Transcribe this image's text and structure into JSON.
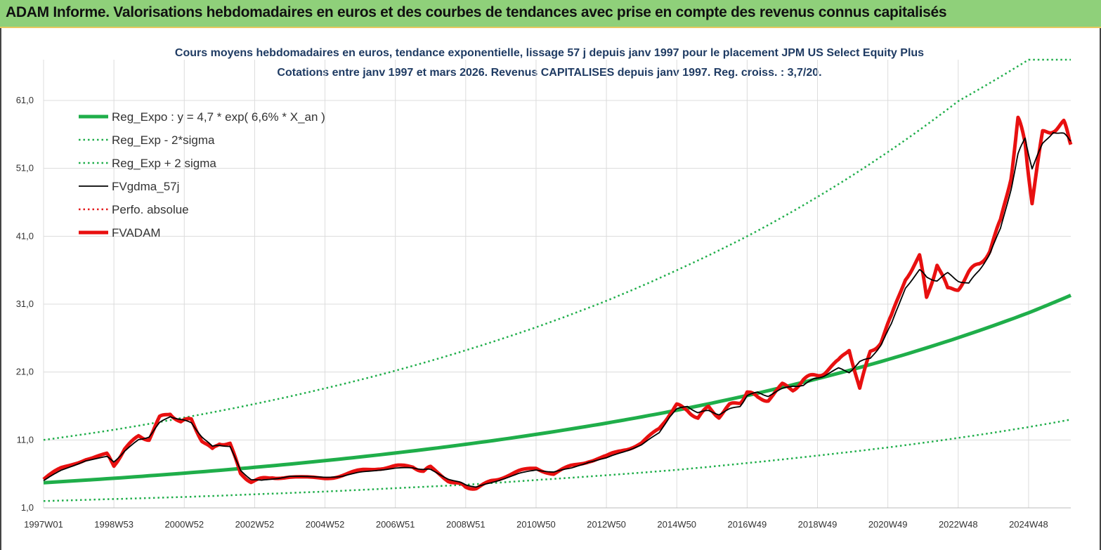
{
  "banner": {
    "title": "ADAM Informe. Valorisations hebdomadaires en euros et des courbes de tendances avec prise en compte des revenus connus capitalisés"
  },
  "chart_data": {
    "type": "line",
    "title_line1": "Cours moyens hebdomadaires en euros, tendance exponentielle, lissage 57 j depuis janv 1997 pour le placement JPM US Select  Equity Plus",
    "title_line2": "Cotations entre janv 1997 et mars 2026. Revenus  CAPITALISES  depuis janv 1997. Reg. croiss. : 3,7/20.",
    "x_range": [
      1997.0,
      2026.2
    ],
    "ylim": [
      1,
      67
    ],
    "y_ticks": [
      1,
      11,
      21,
      31,
      41,
      51,
      61
    ],
    "y_tick_labels": [
      "1,0",
      "11,0",
      "21,0",
      "31,0",
      "41,0",
      "51,0",
      "61,0"
    ],
    "x_ticks": [
      {
        "x": 1997.0,
        "label": "1997W01"
      },
      {
        "x": 1999.0,
        "label": "1998W53"
      },
      {
        "x": 2001.0,
        "label": "2000W52"
      },
      {
        "x": 2003.0,
        "label": "2002W52"
      },
      {
        "x": 2005.0,
        "label": "2004W52"
      },
      {
        "x": 2007.0,
        "label": "2006W51"
      },
      {
        "x": 2009.0,
        "label": "2008W51"
      },
      {
        "x": 2011.0,
        "label": "2010W50"
      },
      {
        "x": 2013.0,
        "label": "2012W50"
      },
      {
        "x": 2015.0,
        "label": "2014W50"
      },
      {
        "x": 2017.0,
        "label": "2016W49"
      },
      {
        "x": 2019.0,
        "label": "2018W49"
      },
      {
        "x": 2021.0,
        "label": "2020W49"
      },
      {
        "x": 2023.0,
        "label": "2022W48"
      },
      {
        "x": 2025.0,
        "label": "2024W48"
      }
    ],
    "grid": true,
    "legend_position": "top-left",
    "series": [
      {
        "name": "Reg_Expo : y = 4,7 * exp( 6,6% *  X_an )",
        "color": "#1fae4a",
        "style": "solid-thick",
        "x": [
          1997,
          1999,
          2001,
          2003,
          2005,
          2007,
          2009,
          2011,
          2013,
          2015,
          2017,
          2019,
          2021,
          2023,
          2025,
          2026.2
        ],
        "y": [
          4.7,
          5.36,
          6.11,
          6.97,
          7.96,
          9.08,
          10.36,
          11.82,
          13.48,
          15.38,
          17.55,
          20.02,
          22.84,
          26.06,
          29.73,
          32.3
        ]
      },
      {
        "name": "Reg_Exp - 2*sigma",
        "color": "#1fae4a",
        "style": "dotted",
        "x": [
          1997,
          1999,
          2001,
          2003,
          2005,
          2007,
          2009,
          2011,
          2013,
          2015,
          2017,
          2019,
          2021,
          2023,
          2025,
          2026.2
        ],
        "y": [
          2.0,
          2.3,
          2.6,
          3.0,
          3.4,
          3.9,
          4.4,
          5.1,
          5.8,
          6.6,
          7.6,
          8.7,
          9.9,
          11.3,
          12.9,
          14.0
        ]
      },
      {
        "name": "Reg_Exp + 2 sigma",
        "color": "#1fae4a",
        "style": "dotted",
        "x": [
          1997,
          1999,
          2001,
          2003,
          2005,
          2007,
          2009,
          2011,
          2013,
          2015,
          2017,
          2019,
          2021,
          2023,
          2025,
          2026.2
        ],
        "y": [
          11.0,
          12.5,
          14.3,
          16.3,
          18.6,
          21.2,
          24.2,
          27.6,
          31.5,
          36.0,
          41.0,
          46.8,
          53.4,
          60.9,
          67.0,
          67.0
        ]
      },
      {
        "name": "FVgdma_57j",
        "color": "#000000",
        "style": "solid",
        "x": [
          1997.0,
          1997.5,
          1998.2,
          1998.8,
          1999.0,
          1999.3,
          1999.7,
          2000.0,
          2000.3,
          2000.6,
          2000.9,
          2001.2,
          2001.5,
          2001.8,
          2002.0,
          2002.3,
          2002.6,
          2002.9,
          2003.2,
          2003.5,
          2004.0,
          2005.0,
          2005.5,
          2006.0,
          2006.5,
          2007.0,
          2007.5,
          2007.8,
          2008.0,
          2008.5,
          2008.8,
          2009.0,
          2009.3,
          2009.7,
          2010.0,
          2010.5,
          2011.0,
          2011.5,
          2012.0,
          2012.5,
          2013.0,
          2013.5,
          2014.0,
          2014.5,
          2014.8,
          2015.0,
          2015.3,
          2015.6,
          2015.9,
          2016.2,
          2016.5,
          2016.8,
          2017.0,
          2017.3,
          2017.6,
          2018.0,
          2018.3,
          2018.6,
          2018.9,
          2019.2,
          2019.6,
          2019.9,
          2020.2,
          2020.5,
          2020.8,
          2021.1,
          2021.5,
          2021.9,
          2022.1,
          2022.4,
          2022.7,
          2023.0,
          2023.3,
          2023.6,
          2023.9,
          2024.2,
          2024.5,
          2024.7,
          2024.9,
          2025.1,
          2025.4,
          2025.7,
          2026.0,
          2026.2
        ],
        "y": [
          5.0,
          6.5,
          8.0,
          8.5,
          7.8,
          9.3,
          11.0,
          11.5,
          13.5,
          14.5,
          14.0,
          13.5,
          11.5,
          10.0,
          10.3,
          10.0,
          6.5,
          5.2,
          5.0,
          5.3,
          5.6,
          5.5,
          5.7,
          6.2,
          6.6,
          6.8,
          6.9,
          6.7,
          6.6,
          5.3,
          4.8,
          4.4,
          4.1,
          4.6,
          5.2,
          6.0,
          6.6,
          6.3,
          6.8,
          7.8,
          8.3,
          9.3,
          10.3,
          12.0,
          14.5,
          15.5,
          16.0,
          15.0,
          15.3,
          14.8,
          15.5,
          16.0,
          17.5,
          18.0,
          17.5,
          18.5,
          19.0,
          19.0,
          20.0,
          20.5,
          21.5,
          21.0,
          22.5,
          23.0,
          25.0,
          28.0,
          33.5,
          36.0,
          35.0,
          34.5,
          35.5,
          34.5,
          34.0,
          36.0,
          38.5,
          42.0,
          48.0,
          53.0,
          55.5,
          51.0,
          54.5,
          56.5,
          56.0,
          55.0
        ]
      },
      {
        "name": "Perfo. absolue",
        "color": "#e31a1c",
        "style": "dotted",
        "x": [],
        "y": []
      },
      {
        "name": "FVADAM",
        "color": "#e81010",
        "style": "solid-thick",
        "x": [
          1997.0,
          1997.5,
          1998.2,
          1998.8,
          1999.0,
          1999.3,
          1999.7,
          2000.0,
          2000.3,
          2000.6,
          2000.9,
          2001.2,
          2001.5,
          2001.8,
          2002.0,
          2002.3,
          2002.6,
          2002.9,
          2003.2,
          2003.5,
          2004.0,
          2005.0,
          2005.5,
          2006.0,
          2006.5,
          2007.0,
          2007.5,
          2007.8,
          2008.0,
          2008.5,
          2008.8,
          2009.0,
          2009.3,
          2009.7,
          2010.0,
          2010.5,
          2011.0,
          2011.5,
          2012.0,
          2012.5,
          2013.0,
          2013.5,
          2014.0,
          2014.5,
          2014.8,
          2015.0,
          2015.3,
          2015.6,
          2015.9,
          2016.2,
          2016.5,
          2016.8,
          2017.0,
          2017.3,
          2017.6,
          2018.0,
          2018.3,
          2018.6,
          2018.9,
          2019.2,
          2019.6,
          2019.9,
          2020.2,
          2020.5,
          2020.8,
          2021.1,
          2021.5,
          2021.9,
          2022.1,
          2022.4,
          2022.7,
          2023.0,
          2023.3,
          2023.6,
          2023.9,
          2024.2,
          2024.5,
          2024.7,
          2024.9,
          2025.1,
          2025.4,
          2025.7,
          2026.0,
          2026.2
        ],
        "y": [
          5.2,
          6.8,
          8.3,
          8.8,
          7.3,
          9.6,
          11.5,
          11.2,
          14.2,
          15.0,
          13.6,
          14.0,
          11.0,
          9.5,
          10.6,
          10.4,
          6.0,
          4.9,
          5.2,
          5.6,
          5.4,
          5.3,
          5.9,
          6.4,
          6.9,
          7.1,
          7.0,
          6.5,
          6.9,
          5.1,
          4.5,
          4.1,
          3.9,
          4.8,
          5.5,
          6.3,
          6.9,
          6.0,
          7.1,
          8.0,
          8.5,
          9.6,
          10.6,
          12.5,
          15.0,
          16.0,
          15.5,
          14.2,
          15.8,
          14.5,
          16.0,
          16.6,
          18.0,
          17.2,
          17.0,
          19.0,
          18.5,
          19.8,
          20.5,
          21.0,
          22.5,
          24.5,
          18.5,
          24.0,
          25.5,
          29.0,
          35.0,
          38.0,
          32.0,
          37.0,
          33.0,
          33.5,
          35.5,
          37.0,
          39.0,
          43.0,
          50.0,
          58.0,
          55.0,
          46.0,
          56.0,
          57.0,
          57.5,
          54.5
        ]
      }
    ]
  }
}
